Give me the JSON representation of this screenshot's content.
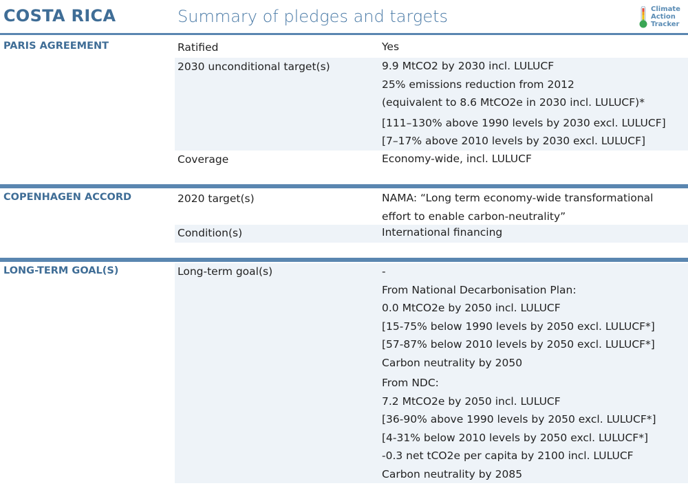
{
  "header": {
    "country": "COSTA RICA",
    "subtitle": "Summary of pledges and targets",
    "logo": {
      "line1": "Climate",
      "line2": "Action",
      "line3": "Tracker",
      "icon": "thermometer-icon"
    }
  },
  "colors": {
    "accent": "#3f6d96",
    "rule": "#5a86b0",
    "shade": "#eef3f8"
  },
  "sections": [
    {
      "label": "PARIS AGREEMENT",
      "rows": [
        {
          "label": "Ratified",
          "lines": [
            "Yes"
          ]
        },
        {
          "label": "2030 unconditional target(s)",
          "lines": [
            "9.9 MtCO2 by 2030 incl. LULUCF",
            "25% emissions reduction from 2012",
            "(equivalent to 8.6 MtCO2e in 2030 incl. LULUCF)*",
            "[111–130% above 1990 levels by 2030 excl. LULUCF]",
            "[7–17% above 2010 levels by 2030 excl. LULUCF]"
          ]
        },
        {
          "label": "Coverage",
          "lines": [
            "Economy-wide, incl. LULUCF"
          ]
        }
      ]
    },
    {
      "label": "COPENHAGEN ACCORD",
      "rows": [
        {
          "label": "2020 target(s)",
          "lines": [
            "NAMA: “Long term economy-wide transformational",
            "effort to enable carbon-neutrality”"
          ]
        },
        {
          "label": "Condition(s)",
          "lines": [
            "International financing"
          ]
        }
      ]
    },
    {
      "label": "LONG-TERM GOAL(S)",
      "rows": [
        {
          "label": "Long-term goal(s)",
          "lines": [
            "-",
            "From National Decarbonisation Plan:",
            "0.0 MtCO2e by 2050 incl. LULUCF",
            "[15-75% below 1990 levels by 2050 excl. LULUCF*]",
            "[57-87% below 2010 levels by 2050 excl. LULUCF*]",
            "Carbon neutrality by 2050",
            "From NDC:",
            "7.2 MtCO2e by 2050 incl. LULUCF",
            "[36-90% above 1990 levels by 2050 excl. LULUCF*]",
            "[4-31% below 2010 levels by 2050 excl. LULUCF*]",
            "-0.3 net tCO2e per capita by 2100 incl. LULUCF",
            "Carbon neutrality by 2085"
          ]
        }
      ]
    }
  ]
}
